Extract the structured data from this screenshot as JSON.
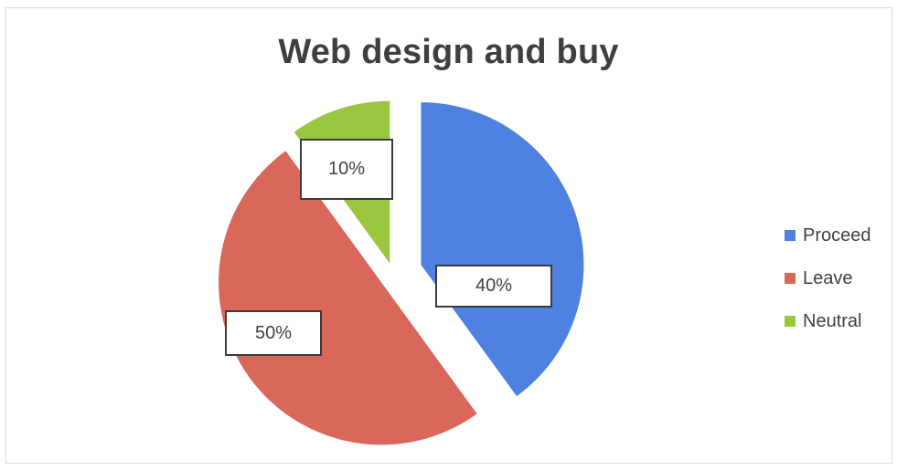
{
  "chart_data": {
    "type": "pie",
    "title": "Web design and buy",
    "slices": [
      {
        "label": "Proceed",
        "value": 40,
        "display": "40%",
        "color": "#4f81e0"
      },
      {
        "label": "Leave",
        "value": 50,
        "display": "50%",
        "color": "#d9685a"
      },
      {
        "label": "Neutral",
        "value": 10,
        "display": "10%",
        "color": "#9bc640"
      }
    ],
    "exploded": true,
    "legend_position": "right",
    "data_labels": "boxed percentages"
  }
}
